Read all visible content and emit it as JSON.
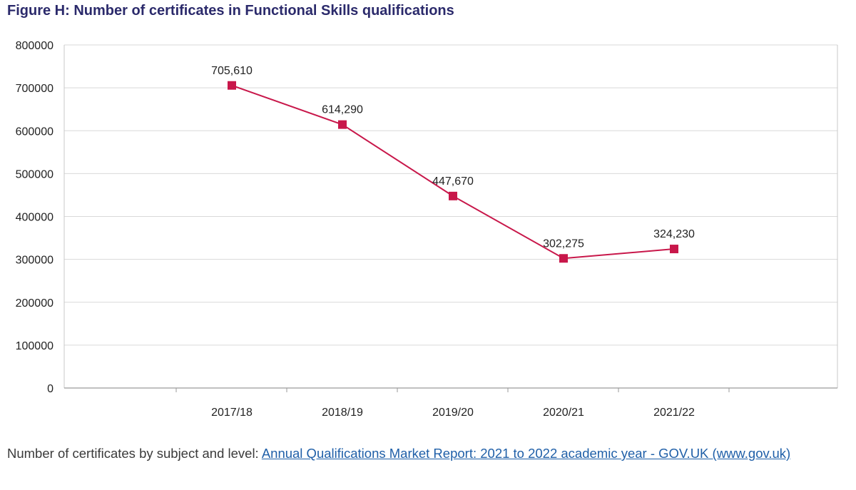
{
  "figure": {
    "title": "Figure H: Number of certificates in Functional Skills qualifications"
  },
  "caption": {
    "prefix": "Number of certificates by subject and level: ",
    "link_text": "Annual Qualifications Market Report: 2021 to 2022 academic year - GOV.UK (www.gov.uk)"
  },
  "colors": {
    "series": "#c8174a",
    "title": "#2b2a6b",
    "link": "#1f5fa8",
    "grid": "#d9d9d9"
  },
  "chart_data": {
    "type": "line",
    "title": "Figure H: Number of certificates in Functional Skills qualifications",
    "xlabel": "",
    "ylabel": "",
    "categories": [
      "2017/18",
      "2018/19",
      "2019/20",
      "2020/21",
      "2021/22"
    ],
    "series": [
      {
        "values": [
          705610,
          614290,
          447670,
          302275,
          324230
        ],
        "data_labels": [
          "705,610",
          "614,290",
          "447,670",
          "302,275",
          "324,230"
        ],
        "marker": "square"
      }
    ],
    "ylim": [
      0,
      800000
    ],
    "yticks": [
      0,
      100000,
      200000,
      300000,
      400000,
      500000,
      600000,
      700000,
      800000
    ],
    "ytick_labels": [
      "0",
      "100000",
      "200000",
      "300000",
      "400000",
      "500000",
      "600000",
      "700000",
      "800000"
    ],
    "grid": true,
    "legend": "none"
  }
}
